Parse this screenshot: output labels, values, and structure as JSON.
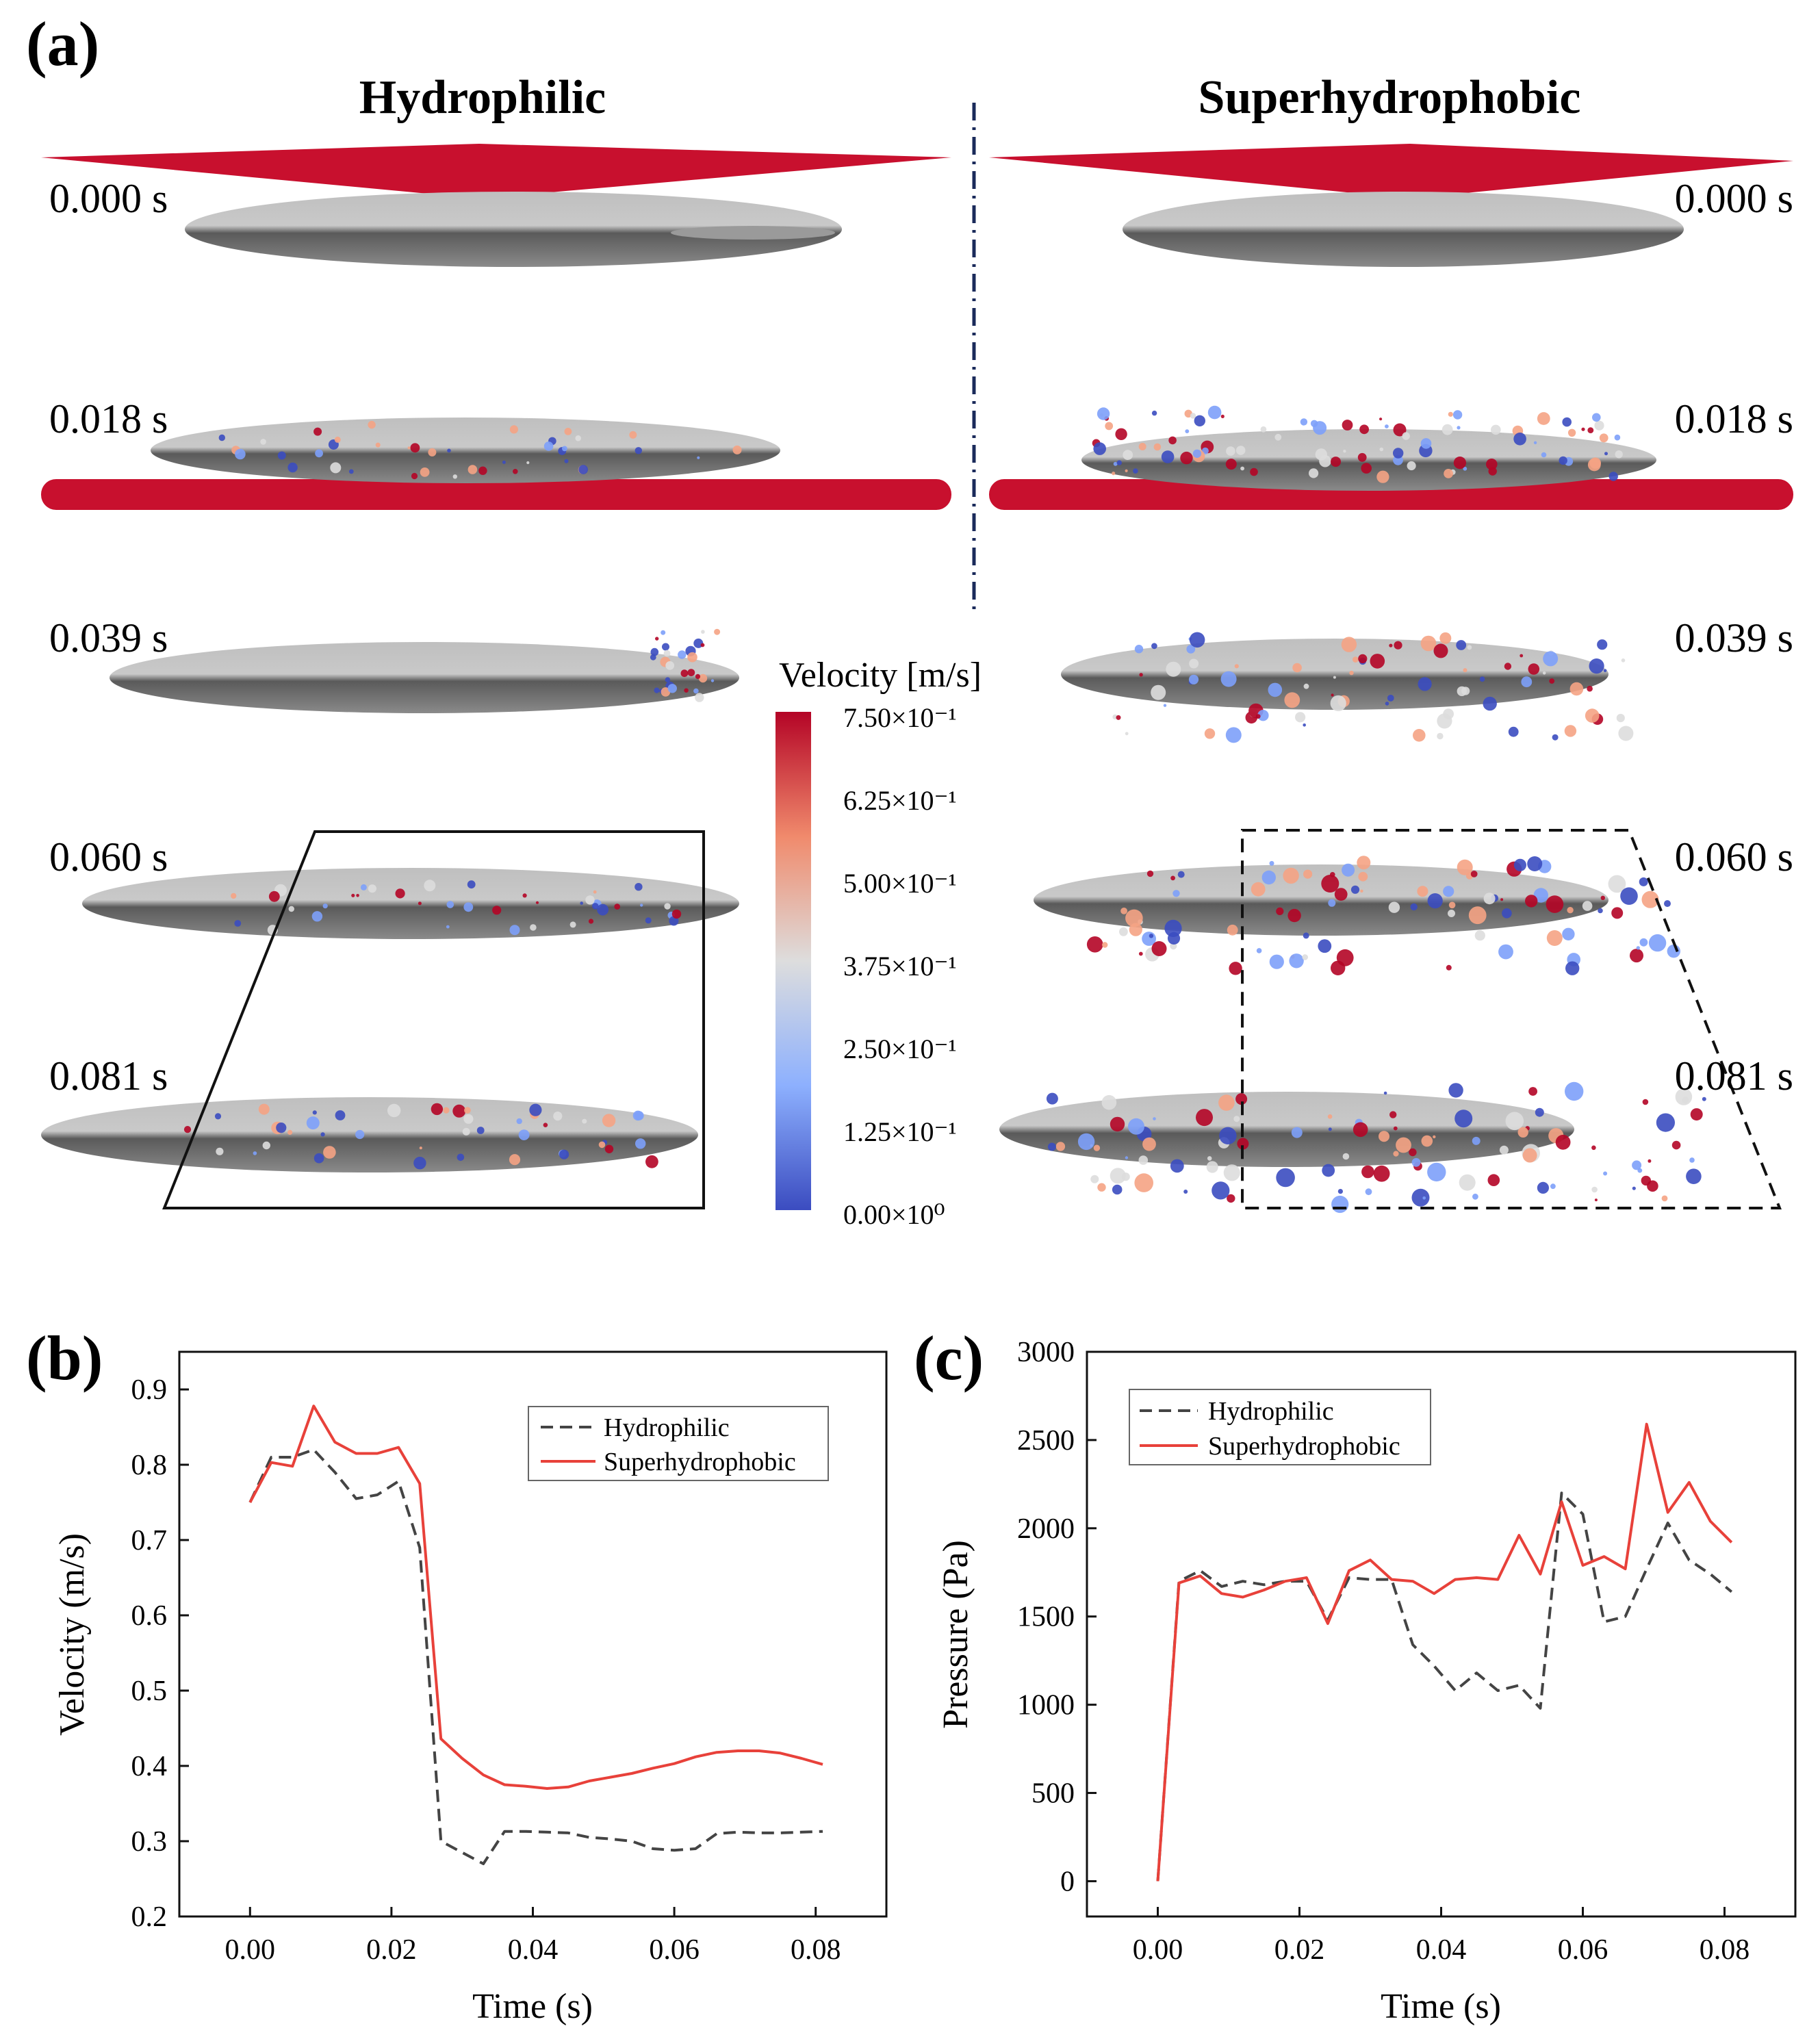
{
  "panel_a": {
    "label": "(a)",
    "left_title": "Hydrophilic",
    "right_title": "Superhydrophobic",
    "times": [
      "0.000 s",
      "0.018 s",
      "0.039 s",
      "0.060 s",
      "0.081 s"
    ],
    "colorbar": {
      "title": "Velocity [m/s]",
      "ticks": [
        "7.50×10⁻¹",
        "6.25×10⁻¹",
        "5.00×10⁻¹",
        "3.75×10⁻¹",
        "2.50×10⁻¹",
        "1.25×10⁻¹",
        "0.00×10⁰"
      ],
      "colors": [
        "#b40426",
        "#f5a384",
        "#dddddd",
        "#7da0f9",
        "#3b4cc0"
      ]
    }
  },
  "chart_data": [
    {
      "id": "b",
      "label": "(b)",
      "type": "line",
      "xlabel": "Time (s)",
      "ylabel": "Velocity (m/s)",
      "xlim": [
        -0.01,
        0.09
      ],
      "ylim": [
        0.2,
        0.95
      ],
      "xticks": [
        0.0,
        0.02,
        0.04,
        0.06,
        0.08
      ],
      "xtick_labels": [
        "0.00",
        "0.02",
        "0.04",
        "0.06",
        "0.08"
      ],
      "yticks": [
        0.2,
        0.3,
        0.4,
        0.5,
        0.6,
        0.7,
        0.8,
        0.9
      ],
      "ytick_labels": [
        "0.2",
        "0.3",
        "0.4",
        "0.5",
        "0.6",
        "0.7",
        "0.8",
        "0.9"
      ],
      "legend": "top-right",
      "series": [
        {
          "name": "Hydrophilic",
          "color": "#444444",
          "dash": true,
          "x": [
            0.0,
            0.003,
            0.006,
            0.009,
            0.012,
            0.015,
            0.018,
            0.021,
            0.024,
            0.027,
            0.03,
            0.033,
            0.036,
            0.039,
            0.042,
            0.045,
            0.048,
            0.051,
            0.054,
            0.057,
            0.06,
            0.063,
            0.066,
            0.069,
            0.072,
            0.075,
            0.078,
            0.081
          ],
          "values": [
            0.75,
            0.81,
            0.81,
            0.82,
            0.79,
            0.755,
            0.76,
            0.778,
            0.69,
            0.3,
            0.285,
            0.27,
            0.313,
            0.313,
            0.312,
            0.311,
            0.305,
            0.303,
            0.3,
            0.29,
            0.288,
            0.29,
            0.31,
            0.312,
            0.311,
            0.311,
            0.312,
            0.313
          ]
        },
        {
          "name": "Superhydrophobic",
          "color": "#e8413a",
          "dash": false,
          "x": [
            0.0,
            0.003,
            0.006,
            0.009,
            0.012,
            0.015,
            0.018,
            0.021,
            0.024,
            0.027,
            0.03,
            0.033,
            0.036,
            0.039,
            0.042,
            0.045,
            0.048,
            0.051,
            0.054,
            0.057,
            0.06,
            0.063,
            0.066,
            0.069,
            0.072,
            0.075,
            0.078,
            0.081
          ],
          "values": [
            0.75,
            0.803,
            0.798,
            0.878,
            0.83,
            0.815,
            0.815,
            0.823,
            0.775,
            0.436,
            0.41,
            0.388,
            0.375,
            0.373,
            0.37,
            0.372,
            0.38,
            0.385,
            0.39,
            0.397,
            0.403,
            0.412,
            0.418,
            0.42,
            0.42,
            0.417,
            0.41,
            0.402
          ]
        }
      ]
    },
    {
      "id": "c",
      "label": "(c)",
      "type": "line",
      "xlabel": "Time (s)",
      "ylabel": "Pressure (Pa)",
      "xlim": [
        -0.01,
        0.09
      ],
      "ylim": [
        -200,
        3000
      ],
      "xticks": [
        0.0,
        0.02,
        0.04,
        0.06,
        0.08
      ],
      "xtick_labels": [
        "0.00",
        "0.02",
        "0.04",
        "0.06",
        "0.08"
      ],
      "yticks": [
        0,
        500,
        1000,
        1500,
        2000,
        2500,
        3000
      ],
      "ytick_labels": [
        "0",
        "500",
        "1000",
        "1500",
        "2000",
        "2500",
        "3000"
      ],
      "legend": "top-left",
      "series": [
        {
          "name": "Hydrophilic",
          "color": "#444444",
          "dash": true,
          "x": [
            0.0,
            0.003,
            0.006,
            0.009,
            0.012,
            0.015,
            0.018,
            0.021,
            0.024,
            0.027,
            0.03,
            0.033,
            0.036,
            0.039,
            0.042,
            0.045,
            0.048,
            0.051,
            0.054,
            0.057,
            0.06,
            0.063,
            0.066,
            0.069,
            0.072,
            0.075,
            0.078,
            0.081
          ],
          "values": [
            0,
            1700,
            1760,
            1670,
            1700,
            1680,
            1700,
            1700,
            1480,
            1720,
            1710,
            1710,
            1340,
            1220,
            1080,
            1180,
            1080,
            1110,
            980,
            2200,
            2080,
            1470,
            1500,
            1770,
            2030,
            1820,
            1740,
            1640
          ]
        },
        {
          "name": "Superhydrophobic",
          "color": "#e8413a",
          "dash": false,
          "x": [
            0.0,
            0.003,
            0.006,
            0.009,
            0.012,
            0.015,
            0.018,
            0.021,
            0.024,
            0.027,
            0.03,
            0.033,
            0.036,
            0.039,
            0.042,
            0.045,
            0.048,
            0.051,
            0.054,
            0.057,
            0.06,
            0.063,
            0.066,
            0.069,
            0.072,
            0.075,
            0.078,
            0.081
          ],
          "values": [
            0,
            1690,
            1730,
            1630,
            1610,
            1650,
            1700,
            1720,
            1460,
            1760,
            1820,
            1710,
            1700,
            1630,
            1710,
            1720,
            1710,
            1960,
            1740,
            2150,
            1790,
            1840,
            1770,
            2590,
            2090,
            2260,
            2040,
            1920
          ]
        }
      ]
    }
  ]
}
